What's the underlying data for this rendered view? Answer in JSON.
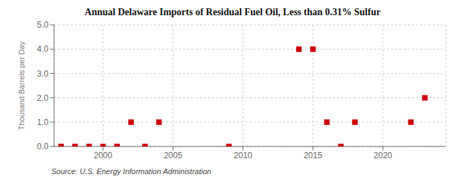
{
  "chart_data": {
    "type": "scatter",
    "title": "Annual Delaware Imports of Residual Fuel Oil, Less than 0.31% Sulfur",
    "ylabel": "Thousand Barrels per Day",
    "source": "Source: U.S. Energy Information Administration",
    "color": "#cc0000",
    "marker": "square",
    "grid": true,
    "xlim": [
      1996.5,
      2024.5
    ],
    "ylim": [
      0.0,
      5.0
    ],
    "xticks": [
      2000,
      2005,
      2010,
      2015,
      2020
    ],
    "yticks": [
      {
        "value": 0.0,
        "label": "0.0"
      },
      {
        "value": 1.0,
        "label": "1.0"
      },
      {
        "value": 2.0,
        "label": "2.0"
      },
      {
        "value": 3.0,
        "label": "3.0"
      },
      {
        "value": 4.0,
        "label": "4.0"
      },
      {
        "value": 5.0,
        "label": "5.0"
      }
    ],
    "x": [
      1997,
      1998,
      1999,
      2000,
      2001,
      2002,
      2003,
      2004,
      2009,
      2014,
      2015,
      2016,
      2017,
      2018,
      2022,
      2023
    ],
    "y": [
      0.0,
      0.0,
      0.0,
      0.0,
      0.0,
      1.0,
      0.0,
      1.0,
      0.0,
      4.0,
      4.0,
      1.0,
      0.0,
      1.0,
      1.0,
      2.0
    ]
  }
}
